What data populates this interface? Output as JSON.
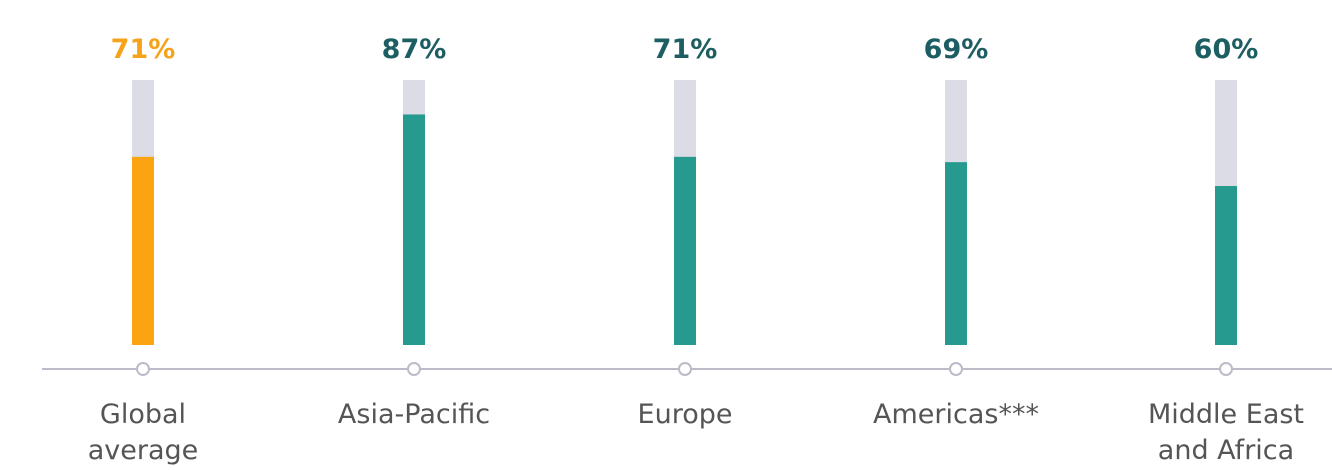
{
  "chart_data": {
    "type": "bar",
    "categories": [
      [
        "Global",
        "average"
      ],
      [
        "Asia-Pacific"
      ],
      [
        "Europe"
      ],
      [
        "Americas***"
      ],
      [
        "Middle East",
        "and Africa"
      ]
    ],
    "values": [
      71,
      87,
      71,
      69,
      60
    ],
    "value_labels": [
      "71%",
      "87%",
      "71%",
      "69%",
      "60%"
    ],
    "colors": [
      "#fca311",
      "#279a8f",
      "#279a8f",
      "#279a8f",
      "#279a8f"
    ],
    "label_colors": [
      "#f5a31a",
      "#1d5e63",
      "#1d5e63",
      "#1d5e63",
      "#1d5e63"
    ],
    "track_color": "#dcdce6",
    "ylim": [
      0,
      100
    ]
  }
}
